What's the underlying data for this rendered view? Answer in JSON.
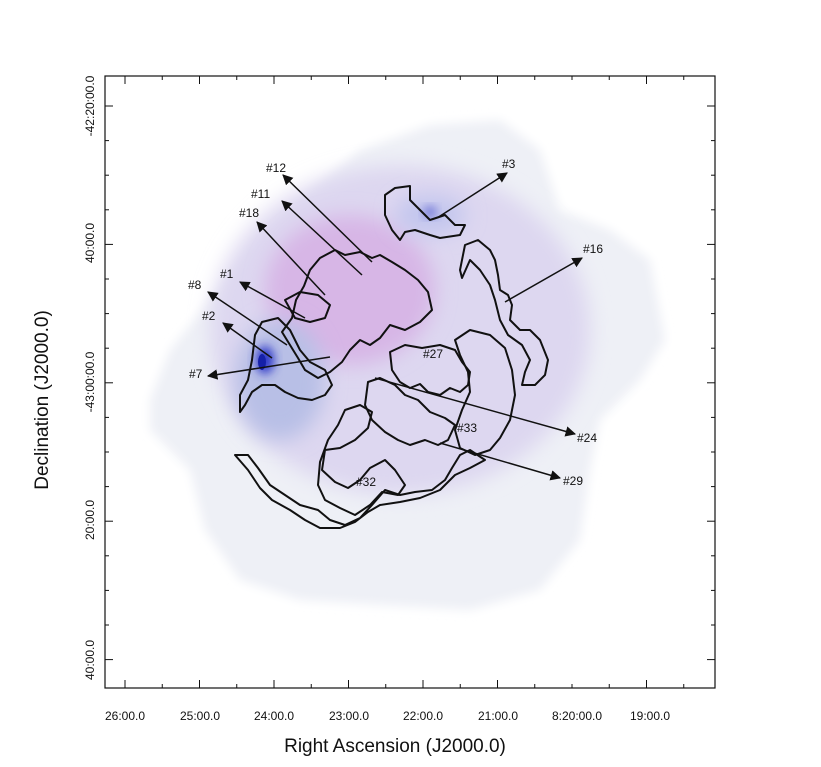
{
  "figure": {
    "xlabel": "Right Ascension (J2000.0)",
    "ylabel": "Declination (J2000.0)",
    "x_ticks": [
      "26:00.0",
      "25:00.0",
      "24:00.0",
      "23:00.0",
      "22:00.0",
      "21:00.0",
      "8:20:00.0",
      "19:00.0"
    ],
    "y_ticks": [
      "-42:20:00.0",
      "40:00.0",
      "-43:00:00.0",
      "20:00.0",
      "40:00.0"
    ],
    "annotations": [
      "#3",
      "#12",
      "#11",
      "#18",
      "#16",
      "#1",
      "#8",
      "#2",
      "#7",
      "#27",
      "#33",
      "#24",
      "#29",
      "#32"
    ]
  }
}
